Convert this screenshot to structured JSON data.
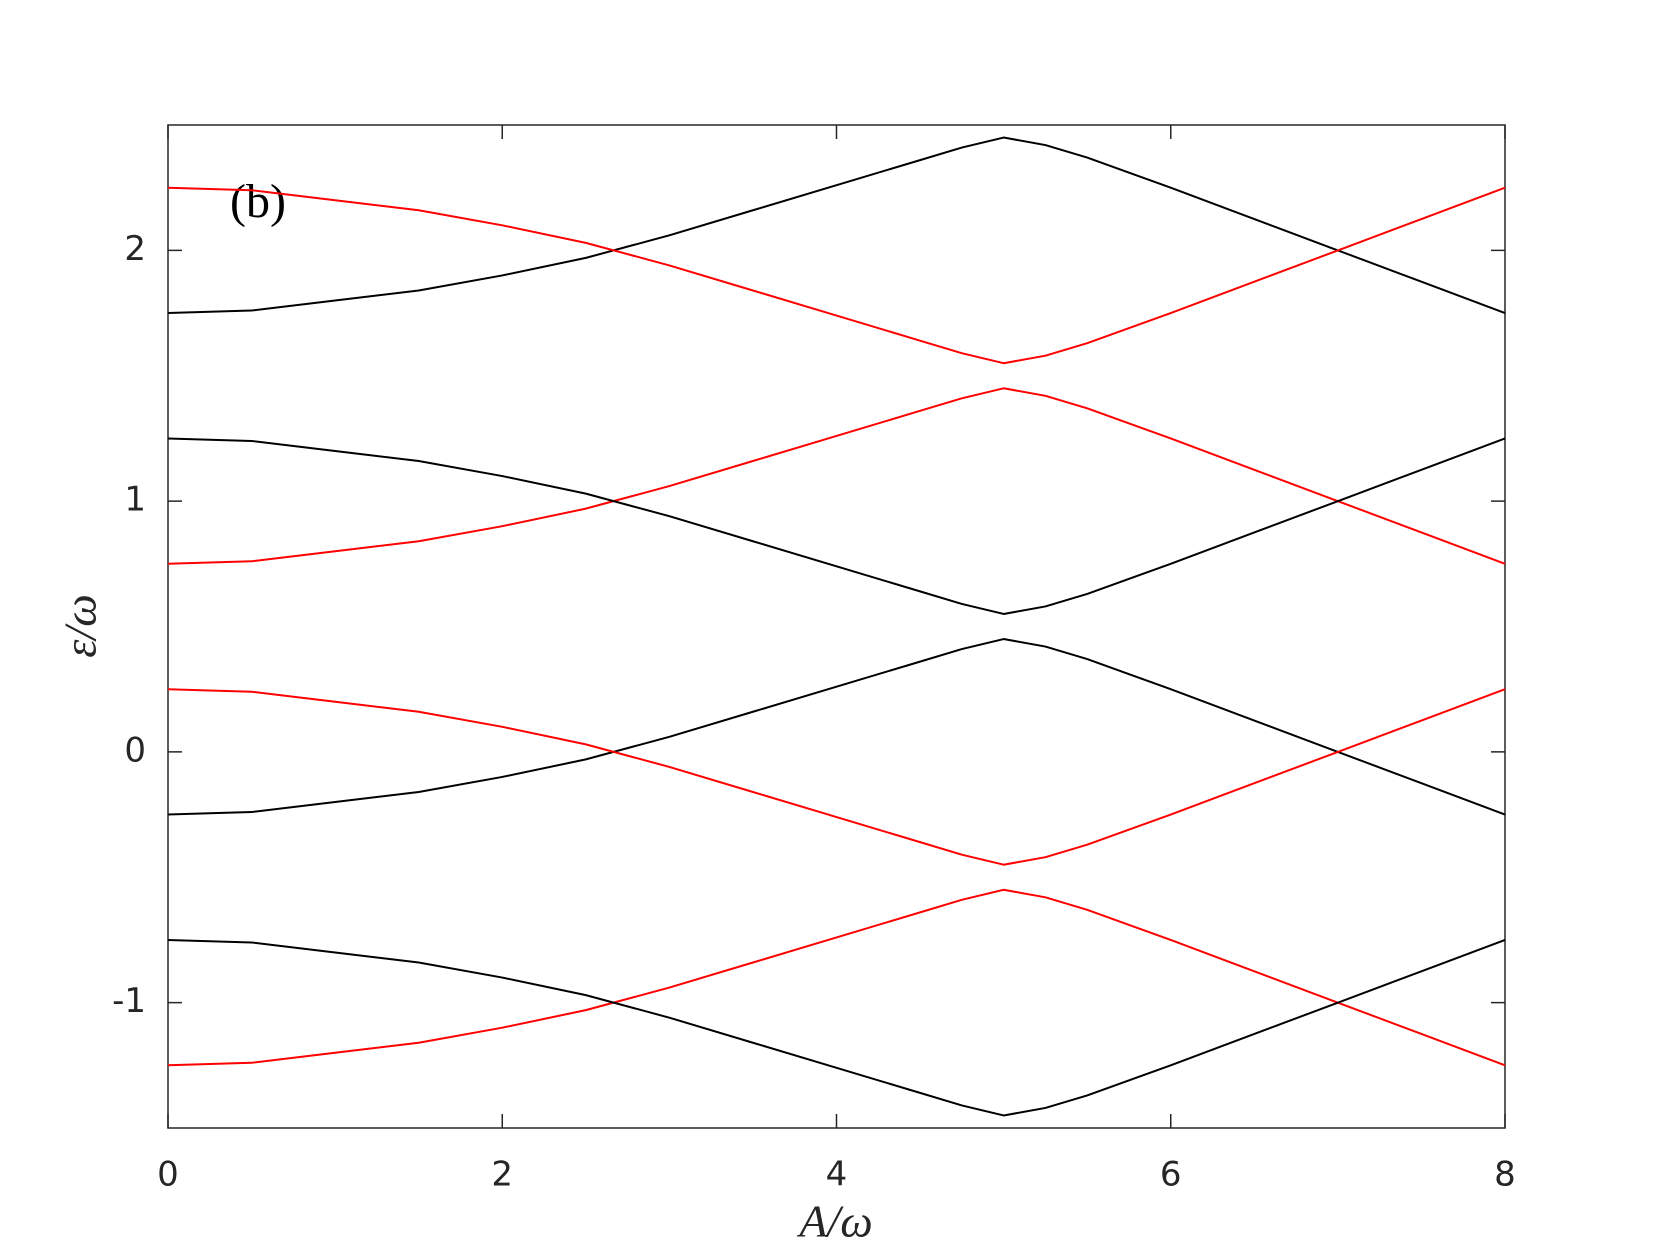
{
  "chart_data": {
    "type": "line",
    "annotation": "(b)",
    "x_label": "A/ω",
    "y_label": "ε/ω",
    "x": [
      0,
      0.5,
      1,
      1.5,
      2,
      2.5,
      3,
      3.5,
      4,
      4.5,
      4.75,
      5,
      5.25,
      5.5,
      6,
      6.5,
      7,
      7.5,
      8
    ],
    "series": [
      {
        "color": "#000000",
        "values": [
          1.75,
          1.76,
          1.8,
          1.84,
          1.9,
          1.97,
          2.06,
          2.16,
          2.26,
          2.36,
          2.41,
          2.45,
          2.42,
          2.37,
          2.25,
          2.125,
          2,
          1.875,
          1.75
        ]
      },
      {
        "color": "#ff0000",
        "values": [
          2.25,
          2.24,
          2.2,
          2.16,
          2.1,
          2.03,
          1.94,
          1.84,
          1.74,
          1.64,
          1.59,
          1.55,
          1.58,
          1.63,
          1.75,
          1.875,
          2,
          2.125,
          2.25
        ]
      },
      {
        "color": "#ff0000",
        "values": [
          0.75,
          0.76,
          0.8,
          0.84,
          0.9,
          0.97,
          1.06,
          1.16,
          1.26,
          1.36,
          1.41,
          1.45,
          1.42,
          1.37,
          1.25,
          1.125,
          1,
          0.875,
          0.75
        ]
      },
      {
        "color": "#000000",
        "values": [
          1.25,
          1.24,
          1.2,
          1.16,
          1.1,
          1.03,
          0.94,
          0.84,
          0.74,
          0.64,
          0.59,
          0.55,
          0.58,
          0.63,
          0.75,
          0.875,
          1,
          1.125,
          1.25
        ]
      },
      {
        "color": "#000000",
        "values": [
          -0.25,
          -0.24,
          -0.2,
          -0.16,
          -0.1,
          -0.03,
          0.06,
          0.16,
          0.26,
          0.36,
          0.41,
          0.45,
          0.42,
          0.37,
          0.25,
          0.125,
          0,
          -0.125,
          -0.25
        ]
      },
      {
        "color": "#ff0000",
        "values": [
          0.25,
          0.24,
          0.2,
          0.16,
          0.1,
          0.03,
          -0.06,
          -0.16,
          -0.26,
          -0.36,
          -0.41,
          -0.45,
          -0.42,
          -0.37,
          -0.25,
          -0.125,
          0,
          0.125,
          0.25
        ]
      },
      {
        "color": "#ff0000",
        "values": [
          -1.25,
          -1.24,
          -1.2,
          -1.16,
          -1.1,
          -1.03,
          -0.94,
          -0.84,
          -0.74,
          -0.64,
          -0.59,
          -0.55,
          -0.58,
          -0.63,
          -0.75,
          -0.875,
          -1,
          -1.125,
          -1.25
        ]
      },
      {
        "color": "#000000",
        "values": [
          -0.75,
          -0.76,
          -0.8,
          -0.84,
          -0.9,
          -0.97,
          -1.06,
          -1.16,
          -1.26,
          -1.36,
          -1.41,
          -1.45,
          -1.42,
          -1.37,
          -1.25,
          -1.125,
          -1,
          -0.875,
          -0.75
        ]
      }
    ],
    "xlim": [
      0,
      8
    ],
    "xticks": [
      0,
      2,
      4,
      6,
      8
    ],
    "ylim": [
      -1.5,
      2.5
    ],
    "yticks": [
      -1,
      0,
      1,
      2
    ],
    "grid": false
  }
}
